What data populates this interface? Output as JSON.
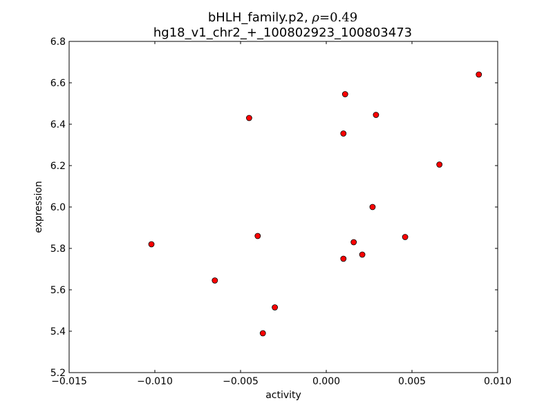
{
  "chart_data": {
    "type": "scatter",
    "title_prefix": "bHLH_family.p2, ",
    "title_rho_symbol": "ρ",
    "title_rho_value": "=0.49",
    "subtitle": "hg18_v1_chr2_+_100802923_100803473",
    "xlabel": "activity",
    "ylabel": "expression",
    "xlim": [
      -0.015,
      0.01
    ],
    "ylim": [
      5.2,
      6.8
    ],
    "xticks": [
      -0.015,
      -0.01,
      -0.005,
      0.0,
      0.005,
      0.01
    ],
    "xtick_labels": [
      "−0.015",
      "−0.010",
      "−0.005",
      "0.000",
      "0.005",
      "0.010"
    ],
    "yticks": [
      5.2,
      5.4,
      5.6,
      5.8,
      6.0,
      6.2,
      6.4,
      6.6,
      6.8
    ],
    "ytick_labels": [
      "5.2",
      "5.4",
      "5.6",
      "5.8",
      "6.0",
      "6.2",
      "6.4",
      "6.6",
      "6.8"
    ],
    "grid": false,
    "marker_color": "#ff0000",
    "marker_edge_color": "#000000",
    "points": [
      {
        "x": -0.0102,
        "y": 5.82
      },
      {
        "x": -0.0065,
        "y": 5.645
      },
      {
        "x": -0.0045,
        "y": 6.43
      },
      {
        "x": -0.004,
        "y": 5.86
      },
      {
        "x": -0.0037,
        "y": 5.39
      },
      {
        "x": -0.003,
        "y": 5.515
      },
      {
        "x": 0.001,
        "y": 5.75
      },
      {
        "x": 0.001,
        "y": 6.355
      },
      {
        "x": 0.0011,
        "y": 6.545
      },
      {
        "x": 0.0016,
        "y": 5.83
      },
      {
        "x": 0.0021,
        "y": 5.77
      },
      {
        "x": 0.0027,
        "y": 6.0
      },
      {
        "x": 0.0029,
        "y": 6.445
      },
      {
        "x": 0.0046,
        "y": 5.855
      },
      {
        "x": 0.0066,
        "y": 6.205
      },
      {
        "x": 0.0089,
        "y": 6.64
      }
    ]
  }
}
